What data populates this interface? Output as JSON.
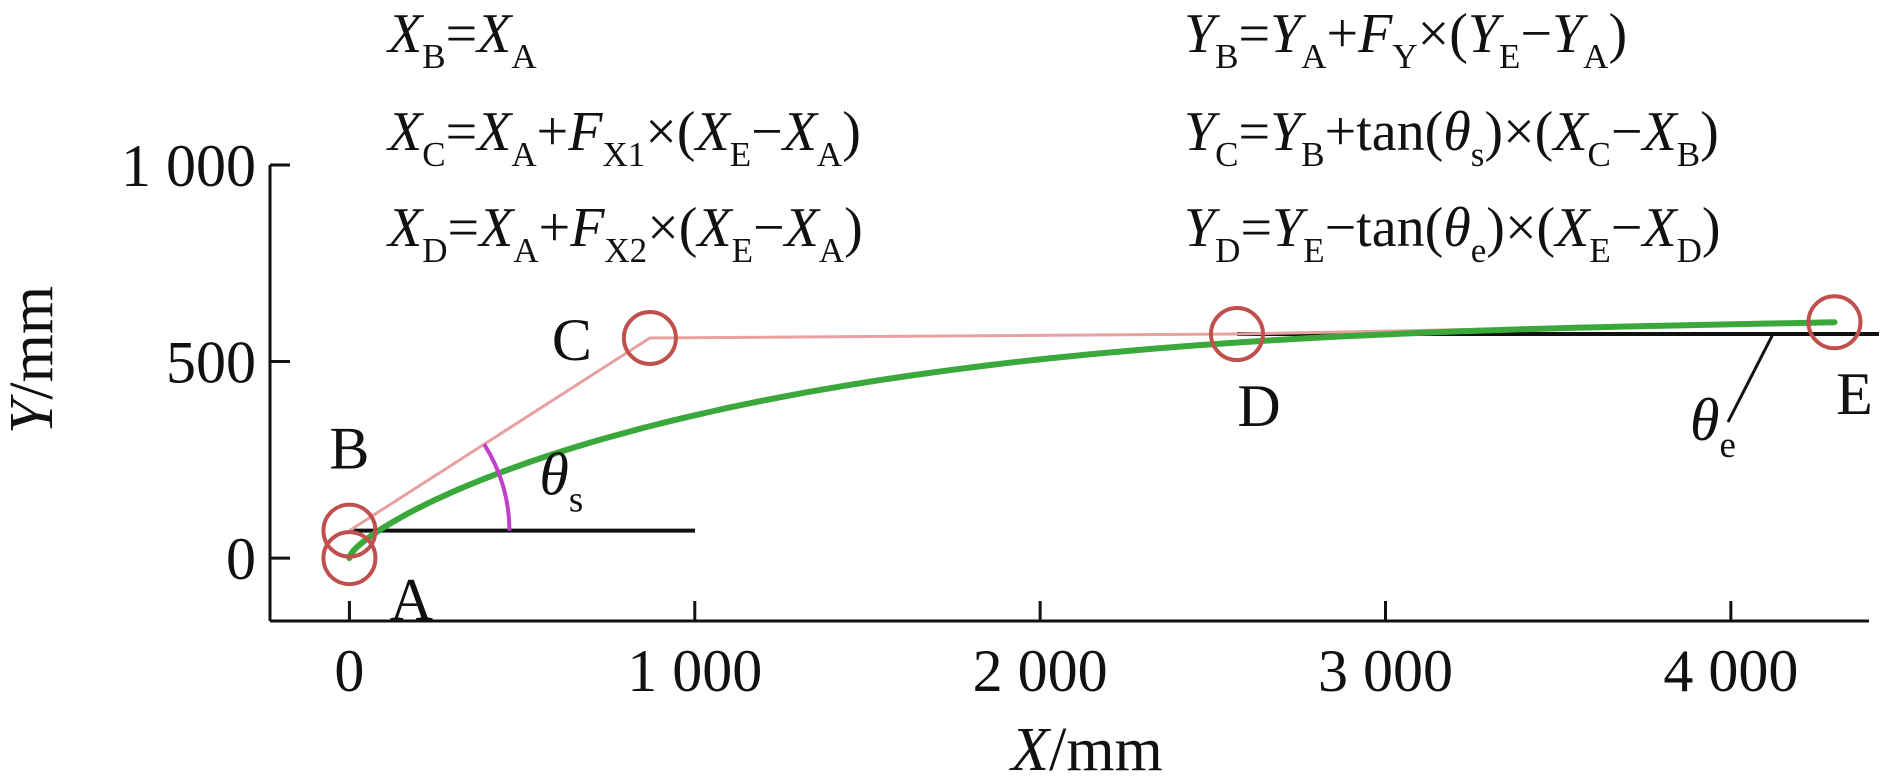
{
  "chart_data": {
    "type": "bezier",
    "formulas": [
      [
        {
          "base": "X",
          "sub": "B"
        },
        "=",
        {
          "base": "X",
          "sub": "A"
        }
      ],
      [
        {
          "base": "X",
          "sub": "C"
        },
        "=",
        {
          "base": "X",
          "sub": "A"
        },
        "+",
        {
          "base": "F",
          "sub": "X1"
        },
        "×(",
        {
          "base": "X",
          "sub": "E"
        },
        "−",
        {
          "base": "X",
          "sub": "A"
        },
        ")"
      ],
      [
        {
          "base": "X",
          "sub": "D"
        },
        "=",
        {
          "base": "X",
          "sub": "A"
        },
        "+",
        {
          "base": "F",
          "sub": "X2"
        },
        "×(",
        {
          "base": "X",
          "sub": "E"
        },
        "−",
        {
          "base": "X",
          "sub": "A"
        },
        ")"
      ],
      [
        {
          "base": "Y",
          "sub": "B"
        },
        "=",
        {
          "base": "Y",
          "sub": "A"
        },
        "+",
        {
          "base": "F",
          "sub": "Y"
        },
        "×(",
        {
          "base": "Y",
          "sub": "E"
        },
        "−",
        {
          "base": "Y",
          "sub": "A"
        },
        ")"
      ],
      [
        {
          "base": "Y",
          "sub": "C"
        },
        "=",
        {
          "base": "Y",
          "sub": "B"
        },
        "+tan(",
        {
          "base": "θ",
          "sub": "s"
        },
        ")×(",
        {
          "base": "X",
          "sub": "C"
        },
        "−",
        {
          "base": "X",
          "sub": "B"
        },
        ")"
      ],
      [
        {
          "base": "Y",
          "sub": "D"
        },
        "=",
        {
          "base": "Y",
          "sub": "E"
        },
        "−tan(",
        {
          "base": "θ",
          "sub": "e"
        },
        ")×(",
        {
          "base": "X",
          "sub": "E"
        },
        "−",
        {
          "base": "X",
          "sub": "D"
        },
        ")"
      ]
    ],
    "x_label": [
      {
        "base": "X"
      },
      "/mm"
    ],
    "y_label": [
      {
        "base": "Y"
      },
      "/mm"
    ],
    "points": {
      "labels": [
        "A",
        "B",
        "C",
        "D",
        "E"
      ],
      "x": [
        0,
        0,
        870,
        2570,
        4300
      ],
      "y": [
        0,
        70,
        560,
        570,
        600
      ]
    },
    "angle_labels": [
      [
        {
          "base": "θ",
          "sub": "s"
        }
      ],
      [
        {
          "base": "θ",
          "sub": "e"
        }
      ]
    ],
    "xlim": [
      -230,
      4400
    ],
    "ylim": [
      -160,
      1000
    ],
    "xticks": [
      0,
      {
        "value": 1000,
        "label": "1 000"
      },
      {
        "value": 2000,
        "label": "2 000"
      },
      {
        "value": 3000,
        "label": "3 000"
      },
      {
        "value": 4000,
        "label": "4 000"
      }
    ],
    "yticks": [
      0,
      500,
      {
        "value": 1000,
        "label": "1 000"
      }
    ],
    "curve_color": "#3aa83a",
    "polygon_color": "#e8a0a0",
    "point_color": "#c0504d",
    "angle_color": "#c040c8"
  }
}
